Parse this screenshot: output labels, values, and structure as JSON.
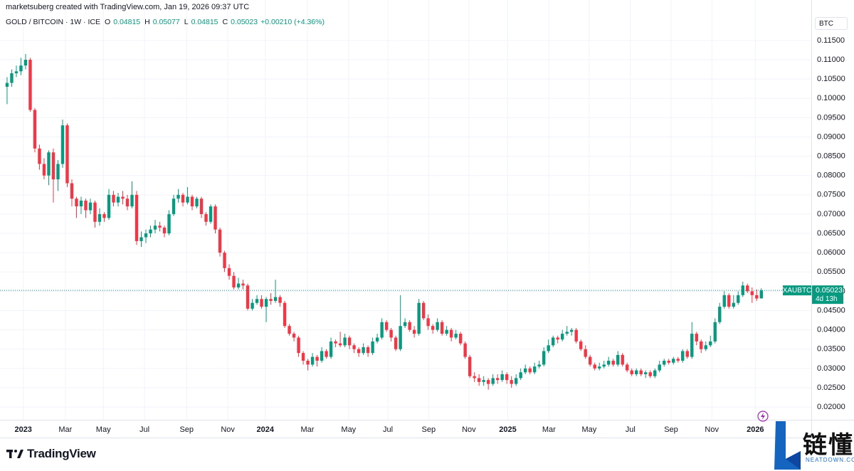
{
  "header": "marketsuberg created with TradingView.com, Jan 19, 2026 09:37 UTC",
  "legend": {
    "symbol": "GOLD / BITCOIN · 1W · ICE",
    "keys": [
      "O",
      "H",
      "L",
      "C"
    ],
    "change": "+0.00210 (+4.36%)"
  },
  "currency": "BTC",
  "logo": "TradingView",
  "watermark": {
    "text": "链懂",
    "site": "NEATDOWN.COM"
  },
  "chart_data": {
    "type": "candlestick",
    "up_color": "#089981",
    "down_color": "#f23645",
    "price_tag": {
      "symbol": "XAUBTC",
      "countdown": "4d 13h"
    },
    "grid": true,
    "xlim": [
      -0.3,
      173.8
    ],
    "xticks": [
      {
        "value": 3.5,
        "label": "2023"
      },
      {
        "value": 12.6,
        "label": "Mar"
      },
      {
        "value": 20.8,
        "label": "May"
      },
      {
        "value": 29.7,
        "label": "Jul"
      },
      {
        "value": 38.8,
        "label": "Sep"
      },
      {
        "value": 47.7,
        "label": "Nov"
      },
      {
        "value": 55.8,
        "label": "2024"
      },
      {
        "value": 64.9,
        "label": "Mar"
      },
      {
        "value": 73.8,
        "label": "May"
      },
      {
        "value": 82.3,
        "label": "Jul"
      },
      {
        "value": 91.1,
        "label": "Sep"
      },
      {
        "value": 99.8,
        "label": "Nov"
      },
      {
        "value": 108.2,
        "label": "2025"
      },
      {
        "value": 117.1,
        "label": "Mar"
      },
      {
        "value": 125.8,
        "label": "May"
      },
      {
        "value": 134.7,
        "label": "Jul"
      },
      {
        "value": 143.5,
        "label": "Sep"
      },
      {
        "value": 152.3,
        "label": "Nov"
      },
      {
        "value": 161.7,
        "label": "2026"
      }
    ],
    "ylim": [
      0.0167,
      0.1218
    ],
    "yticks": [
      {
        "value": 0.02,
        "label": "0.02000"
      },
      {
        "value": 0.025,
        "label": "0.02500"
      },
      {
        "value": 0.03,
        "label": "0.03000"
      },
      {
        "value": 0.035,
        "label": "0.03500"
      },
      {
        "value": 0.04,
        "label": "0.04000"
      },
      {
        "value": 0.045,
        "label": "0.04500"
      },
      {
        "value": 0.05,
        "label": "0.05000"
      },
      {
        "value": 0.055,
        "label": "0.05500"
      },
      {
        "value": 0.06,
        "label": "0.06000"
      },
      {
        "value": 0.065,
        "label": "0.06500"
      },
      {
        "value": 0.07,
        "label": "0.07000"
      },
      {
        "value": 0.075,
        "label": "0.07500"
      },
      {
        "value": 0.08,
        "label": "0.08000"
      },
      {
        "value": 0.085,
        "label": "0.08500"
      },
      {
        "value": 0.09,
        "label": "0.09000"
      },
      {
        "value": 0.095,
        "label": "0.09500"
      },
      {
        "value": 0.1,
        "label": "0.10000"
      },
      {
        "value": 0.105,
        "label": "0.10500"
      },
      {
        "value": 0.11,
        "label": "0.11000"
      },
      {
        "value": 0.115,
        "label": "0.11500"
      }
    ],
    "open": [
      0.103,
      0.104,
      0.1065,
      0.107,
      0.1085,
      0.11,
      0.097,
      0.087,
      0.083,
      0.08,
      0.086,
      0.079,
      0.083,
      0.093,
      0.078,
      0.074,
      0.072,
      0.0735,
      0.071,
      0.073,
      0.068,
      0.07,
      0.069,
      0.075,
      0.073,
      0.0745,
      0.074,
      0.072,
      0.075,
      0.063,
      0.064,
      0.065,
      0.066,
      0.067,
      0.0665,
      0.065,
      0.07,
      0.074,
      0.075,
      0.073,
      0.0745,
      0.072,
      0.074,
      0.07,
      0.068,
      0.072,
      0.066,
      0.06,
      0.056,
      0.054,
      0.051,
      0.052,
      0.0515,
      0.0455,
      0.047,
      0.048,
      0.046,
      0.048,
      0.0475,
      0.0485,
      0.047,
      0.041,
      0.039,
      0.038,
      0.034,
      0.032,
      0.031,
      0.033,
      0.032,
      0.0345,
      0.033,
      0.037,
      0.0365,
      0.036,
      0.038,
      0.036,
      0.035,
      0.034,
      0.0355,
      0.034,
      0.037,
      0.038,
      0.042,
      0.04,
      0.038,
      0.035,
      0.041,
      0.042,
      0.04,
      0.039,
      0.047,
      0.043,
      0.041,
      0.04,
      0.042,
      0.039,
      0.04,
      0.038,
      0.039,
      0.0365,
      0.033,
      0.028,
      0.0275,
      0.0265,
      0.027,
      0.026,
      0.0275,
      0.027,
      0.0285,
      0.027,
      0.026,
      0.0275,
      0.029,
      0.03,
      0.029,
      0.0305,
      0.031,
      0.0345,
      0.036,
      0.038,
      0.0375,
      0.039,
      0.0395,
      0.04,
      0.037,
      0.035,
      0.033,
      0.031,
      0.03,
      0.0305,
      0.031,
      0.032,
      0.031,
      0.0335,
      0.031,
      0.0295,
      0.0285,
      0.0295,
      0.0285,
      0.029,
      0.028,
      0.0295,
      0.031,
      0.032,
      0.0315,
      0.0325,
      0.032,
      0.0345,
      0.033,
      0.039,
      0.037,
      0.035,
      0.036,
      0.037,
      0.042,
      0.046,
      0.049,
      0.046,
      0.047,
      0.049,
      0.0515,
      0.05,
      0.049,
      0.04815
    ],
    "high": [
      0.1055,
      0.1075,
      0.1085,
      0.1105,
      0.1115,
      0.1105,
      0.0975,
      0.088,
      0.0845,
      0.0865,
      0.087,
      0.084,
      0.0945,
      0.0935,
      0.079,
      0.0745,
      0.0745,
      0.074,
      0.074,
      0.0735,
      0.0715,
      0.0705,
      0.0765,
      0.076,
      0.0755,
      0.076,
      0.075,
      0.0785,
      0.076,
      0.0655,
      0.066,
      0.067,
      0.0685,
      0.068,
      0.067,
      0.071,
      0.075,
      0.0765,
      0.0755,
      0.077,
      0.075,
      0.0745,
      0.0745,
      0.0705,
      0.0725,
      0.0725,
      0.0665,
      0.0605,
      0.057,
      0.055,
      0.0535,
      0.053,
      0.052,
      0.048,
      0.049,
      0.049,
      0.0485,
      0.0495,
      0.053,
      0.049,
      0.0475,
      0.0415,
      0.0395,
      0.0385,
      0.0345,
      0.0325,
      0.034,
      0.0335,
      0.0355,
      0.035,
      0.038,
      0.0375,
      0.0395,
      0.039,
      0.0385,
      0.0365,
      0.0355,
      0.0365,
      0.036,
      0.038,
      0.039,
      0.043,
      0.0425,
      0.0405,
      0.0385,
      0.049,
      0.043,
      0.0425,
      0.041,
      0.048,
      0.0475,
      0.044,
      0.0415,
      0.043,
      0.0425,
      0.041,
      0.0405,
      0.04,
      0.0395,
      0.037,
      0.0335,
      0.029,
      0.0285,
      0.028,
      0.0275,
      0.0285,
      0.0285,
      0.0295,
      0.029,
      0.028,
      0.0285,
      0.03,
      0.031,
      0.0305,
      0.0315,
      0.032,
      0.0355,
      0.0375,
      0.0385,
      0.0385,
      0.04,
      0.041,
      0.0405,
      0.0405,
      0.0375,
      0.036,
      0.0335,
      0.0315,
      0.0315,
      0.032,
      0.033,
      0.0325,
      0.0345,
      0.034,
      0.0315,
      0.03,
      0.03,
      0.03,
      0.0295,
      0.0295,
      0.03,
      0.032,
      0.0325,
      0.0325,
      0.033,
      0.033,
      0.035,
      0.035,
      0.042,
      0.0395,
      0.0375,
      0.037,
      0.0385,
      0.043,
      0.047,
      0.05,
      0.0495,
      0.049,
      0.05,
      0.0525,
      0.052,
      0.051,
      0.0505,
      0.05077
    ],
    "low": [
      0.0985,
      0.103,
      0.1055,
      0.106,
      0.1075,
      0.0965,
      0.086,
      0.0815,
      0.079,
      0.0775,
      0.073,
      0.076,
      0.082,
      0.077,
      0.072,
      0.069,
      0.07,
      0.069,
      0.07,
      0.0665,
      0.067,
      0.068,
      0.0685,
      0.072,
      0.072,
      0.0725,
      0.071,
      0.0715,
      0.062,
      0.0615,
      0.0625,
      0.064,
      0.065,
      0.0655,
      0.064,
      0.0645,
      0.0695,
      0.073,
      0.072,
      0.0725,
      0.071,
      0.0715,
      0.069,
      0.067,
      0.0675,
      0.065,
      0.059,
      0.055,
      0.053,
      0.0505,
      0.0505,
      0.0505,
      0.045,
      0.045,
      0.0465,
      0.0455,
      0.042,
      0.0465,
      0.047,
      0.046,
      0.0405,
      0.0385,
      0.037,
      0.033,
      0.031,
      0.0295,
      0.0305,
      0.0305,
      0.0315,
      0.0325,
      0.0325,
      0.0355,
      0.0355,
      0.0355,
      0.035,
      0.034,
      0.033,
      0.0335,
      0.033,
      0.0335,
      0.0365,
      0.0375,
      0.0395,
      0.037,
      0.0345,
      0.0345,
      0.0405,
      0.0395,
      0.038,
      0.0385,
      0.0425,
      0.04,
      0.039,
      0.0395,
      0.0385,
      0.0385,
      0.037,
      0.0375,
      0.036,
      0.0325,
      0.0275,
      0.0265,
      0.0255,
      0.0255,
      0.0245,
      0.0255,
      0.026,
      0.0265,
      0.026,
      0.025,
      0.0255,
      0.027,
      0.0285,
      0.0285,
      0.0285,
      0.03,
      0.0305,
      0.034,
      0.0355,
      0.0365,
      0.037,
      0.0385,
      0.0385,
      0.0365,
      0.0345,
      0.0325,
      0.0305,
      0.0295,
      0.0295,
      0.03,
      0.0305,
      0.0305,
      0.0305,
      0.0305,
      0.029,
      0.028,
      0.028,
      0.028,
      0.0275,
      0.0275,
      0.0275,
      0.029,
      0.0305,
      0.031,
      0.031,
      0.0315,
      0.0315,
      0.0325,
      0.0325,
      0.036,
      0.034,
      0.0345,
      0.0355,
      0.0365,
      0.0415,
      0.0455,
      0.0455,
      0.0455,
      0.0465,
      0.0485,
      0.0495,
      0.047,
      0.0475,
      0.04815
    ],
    "close": [
      0.104,
      0.1065,
      0.107,
      0.1085,
      0.11,
      0.097,
      0.087,
      0.083,
      0.08,
      0.086,
      0.079,
      0.083,
      0.093,
      0.078,
      0.074,
      0.072,
      0.0735,
      0.071,
      0.073,
      0.068,
      0.07,
      0.069,
      0.075,
      0.073,
      0.0745,
      0.074,
      0.072,
      0.075,
      0.063,
      0.064,
      0.065,
      0.066,
      0.067,
      0.0665,
      0.065,
      0.07,
      0.074,
      0.075,
      0.073,
      0.0745,
      0.072,
      0.074,
      0.07,
      0.068,
      0.072,
      0.066,
      0.06,
      0.056,
      0.054,
      0.051,
      0.052,
      0.0515,
      0.0455,
      0.047,
      0.048,
      0.046,
      0.048,
      0.0475,
      0.0485,
      0.047,
      0.041,
      0.039,
      0.038,
      0.034,
      0.032,
      0.031,
      0.033,
      0.032,
      0.0345,
      0.033,
      0.037,
      0.0365,
      0.036,
      0.038,
      0.036,
      0.035,
      0.034,
      0.0355,
      0.034,
      0.037,
      0.038,
      0.042,
      0.04,
      0.038,
      0.035,
      0.041,
      0.042,
      0.04,
      0.039,
      0.047,
      0.043,
      0.041,
      0.04,
      0.042,
      0.039,
      0.04,
      0.038,
      0.039,
      0.0365,
      0.033,
      0.028,
      0.0275,
      0.0265,
      0.027,
      0.026,
      0.0275,
      0.027,
      0.0285,
      0.027,
      0.026,
      0.0275,
      0.029,
      0.03,
      0.029,
      0.0305,
      0.031,
      0.0345,
      0.036,
      0.038,
      0.0375,
      0.039,
      0.0395,
      0.04,
      0.037,
      0.035,
      0.033,
      0.031,
      0.03,
      0.0305,
      0.031,
      0.032,
      0.031,
      0.0335,
      0.031,
      0.0295,
      0.0285,
      0.0295,
      0.0285,
      0.029,
      0.028,
      0.0295,
      0.031,
      0.032,
      0.0315,
      0.0325,
      0.032,
      0.0345,
      0.033,
      0.039,
      0.037,
      0.035,
      0.036,
      0.037,
      0.042,
      0.046,
      0.049,
      0.046,
      0.047,
      0.049,
      0.0515,
      0.05,
      0.049,
      0.04813,
      0.05023
    ]
  }
}
